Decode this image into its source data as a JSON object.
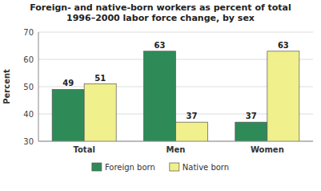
{
  "chart_data": {
    "type": "bar",
    "title": "Foreign- and native-born workers as percent of total\n1996–2000 labor force change, by sex",
    "categories": [
      "Total",
      "Men",
      "Women"
    ],
    "series": [
      {
        "name": "Foreign born",
        "color": "#2E8B57",
        "values": [
          49,
          63,
          37
        ]
      },
      {
        "name": "Native born",
        "color": "#F0F08C",
        "values": [
          51,
          37,
          63
        ]
      }
    ],
    "ylabel": "Percent",
    "ylim": [
      30,
      70
    ],
    "yticks": [
      30,
      40,
      50,
      60,
      70
    ],
    "grid": true,
    "data_labels": true,
    "legend": "bottom"
  }
}
